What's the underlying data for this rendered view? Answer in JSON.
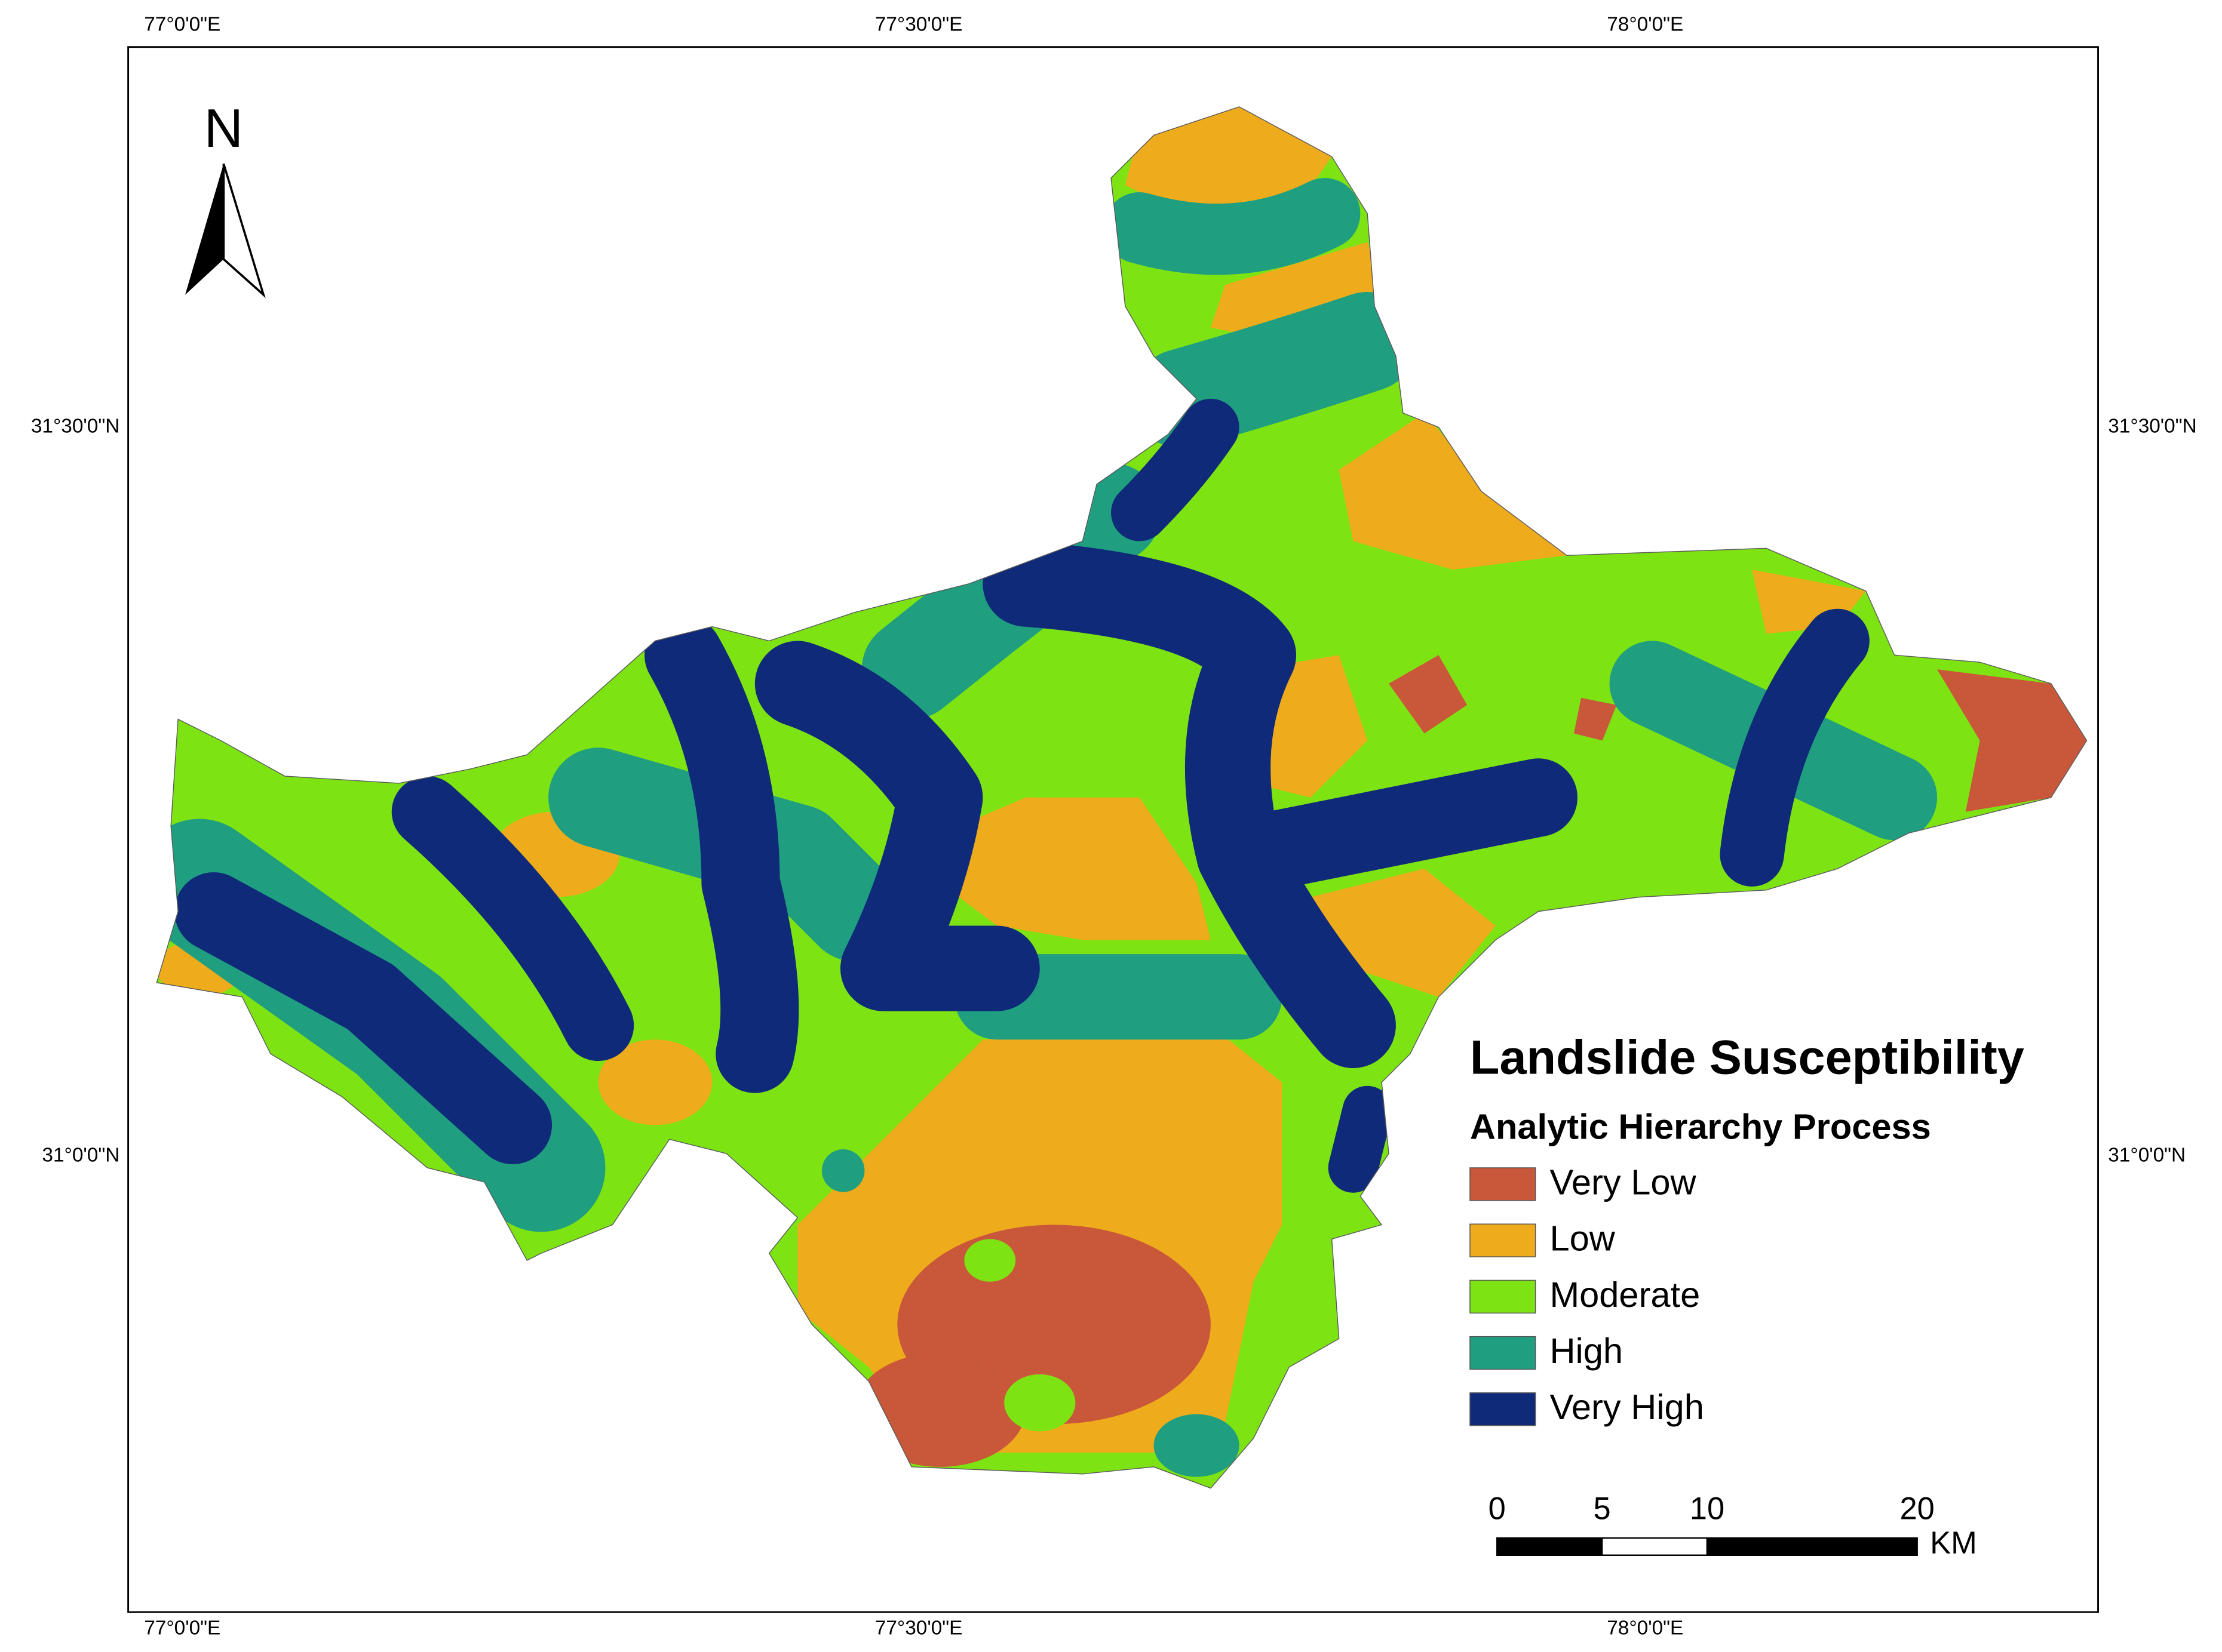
{
  "north_arrow": {
    "label": "N"
  },
  "graticule": {
    "top": [
      "77°0'0\"E",
      "77°30'0\"E",
      "78°0'0\"E"
    ],
    "bottom": [
      "77°0'0\"E",
      "77°30'0\"E",
      "78°0'0\"E"
    ],
    "left": [
      "31°30'0\"N",
      "31°0'0\"N"
    ],
    "right": [
      "31°30'0\"N",
      "31°0'0\"N"
    ]
  },
  "legend": {
    "title": "Landslide Susceptibility",
    "subtitle": "Analytic Hierarchy Process",
    "items": [
      {
        "label": "Very Low",
        "color": "#c9573a"
      },
      {
        "label": "Low",
        "color": "#eeac1c"
      },
      {
        "label": "Moderate",
        "color": "#7ee313"
      },
      {
        "label": "High",
        "color": "#1f9e80"
      },
      {
        "label": "Very High",
        "color": "#0f2a78"
      }
    ]
  },
  "scale_bar": {
    "ticks": [
      0,
      5,
      10,
      20
    ],
    "unit": "KM"
  }
}
